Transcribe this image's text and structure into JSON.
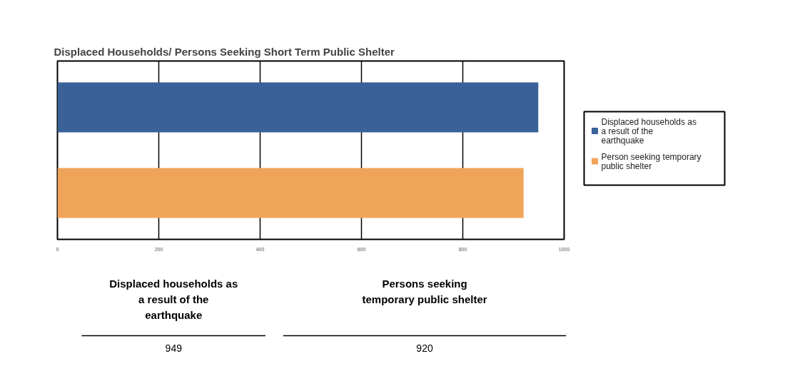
{
  "chart_data": {
    "type": "bar",
    "orientation": "horizontal",
    "title": "Displaced Households/ Persons Seeking Short Term Public Shelter",
    "categories": [
      null
    ],
    "series": [
      {
        "name": "Displaced households as a result of the earthquake",
        "color": "#3a6298",
        "values": [
          949
        ]
      },
      {
        "name": "Person seeking temporary public shelter",
        "color": "#f0a45a",
        "values": [
          920
        ]
      }
    ],
    "xlim": [
      0,
      1000
    ],
    "xticks": [
      0,
      200,
      400,
      600,
      800,
      1000
    ],
    "grid": "x",
    "tick_labels": "x",
    "legend": "right",
    "annotations": [
      "Displaced households as a result of the earthquake",
      "Persons seeking temporary public shelter",
      "949",
      "920"
    ]
  }
}
